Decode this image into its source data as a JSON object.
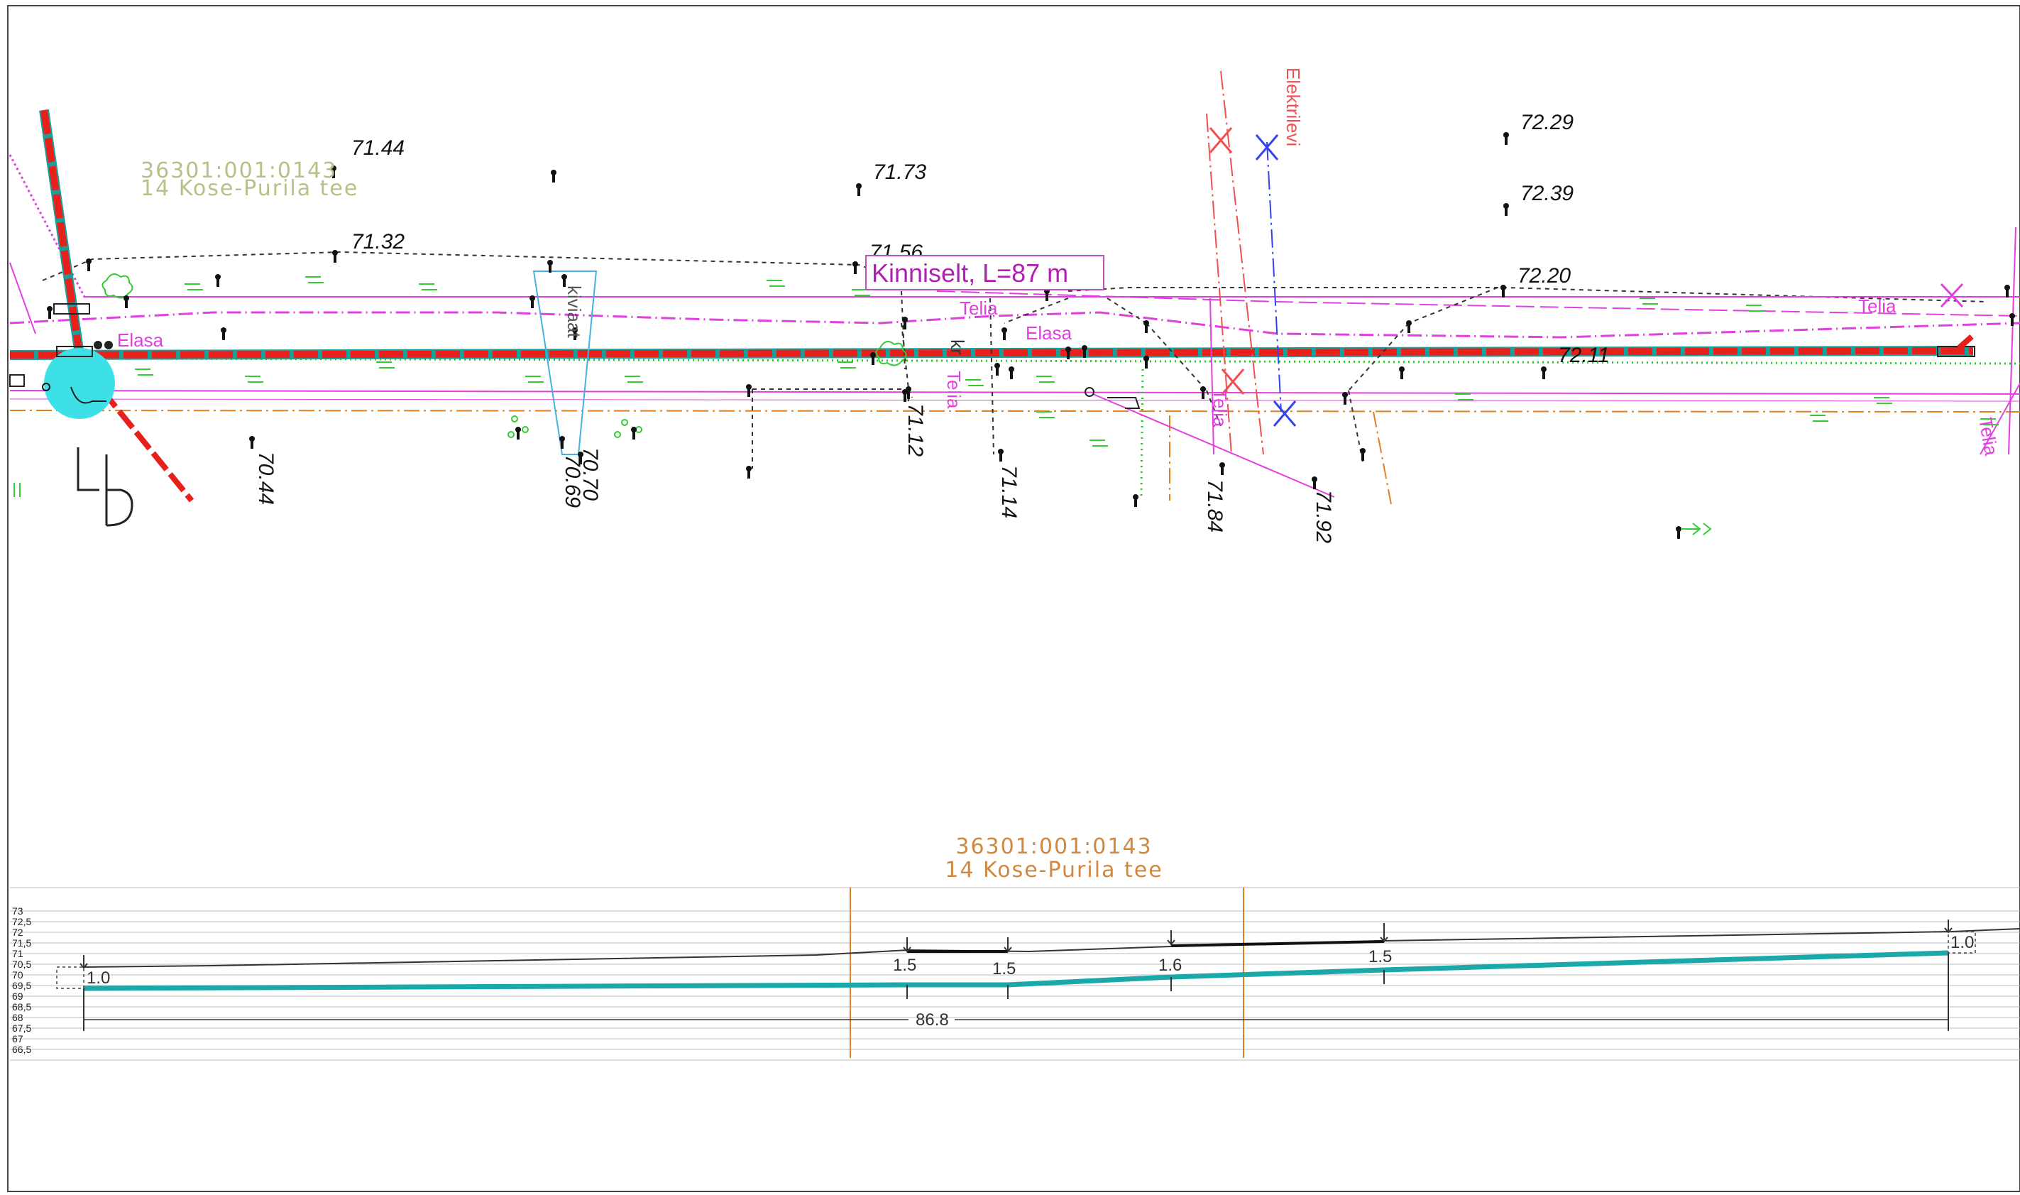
{
  "plan": {
    "parcel_top": {
      "id": "36301:001:0143",
      "name": "14 Kose-Purila tee"
    },
    "route_label": "Kinniselt, L=87 m",
    "elevations": [
      "71.44",
      "71.73",
      "72.29",
      "72.39",
      "71.32",
      "71.56",
      "72.20",
      "72.11",
      "70.44",
      "70.69",
      "70.70",
      "71.12",
      "71.14",
      "71.84",
      "71.92"
    ],
    "labels": {
      "elektrilevi": "Elektrilevi",
      "telia": "Telia",
      "elasa": "Elasa",
      "kivi": "kiviaat",
      "kr": "kr",
      "lp": "LP",
      "elasa_left": "Elasa"
    },
    "colors": {
      "main_route": "#e8201c",
      "route_core": "#1aa09a",
      "telia": "#e040e0",
      "elektrilevi": "#f05050",
      "blue_line": "#3344ee",
      "parcel_text": "#b8c088",
      "profile_text": "#d08840",
      "profile_line": "#1aa8a8",
      "orange_line": "#e08020"
    }
  },
  "profile": {
    "parcel": {
      "id": "36301:001:0143",
      "name": "14 Kose-Purila tee"
    },
    "scale_labels": [
      "73",
      "72,5",
      "72",
      "71,5",
      "71",
      "70,5",
      "70",
      "69,5",
      "69",
      "68,5",
      "68",
      "67,5",
      "67",
      "66,5"
    ],
    "depth_labels": [
      "1.0",
      "1.5",
      "1.5",
      "1.6",
      "1.5",
      "1.0"
    ],
    "length_label": "86.8"
  }
}
